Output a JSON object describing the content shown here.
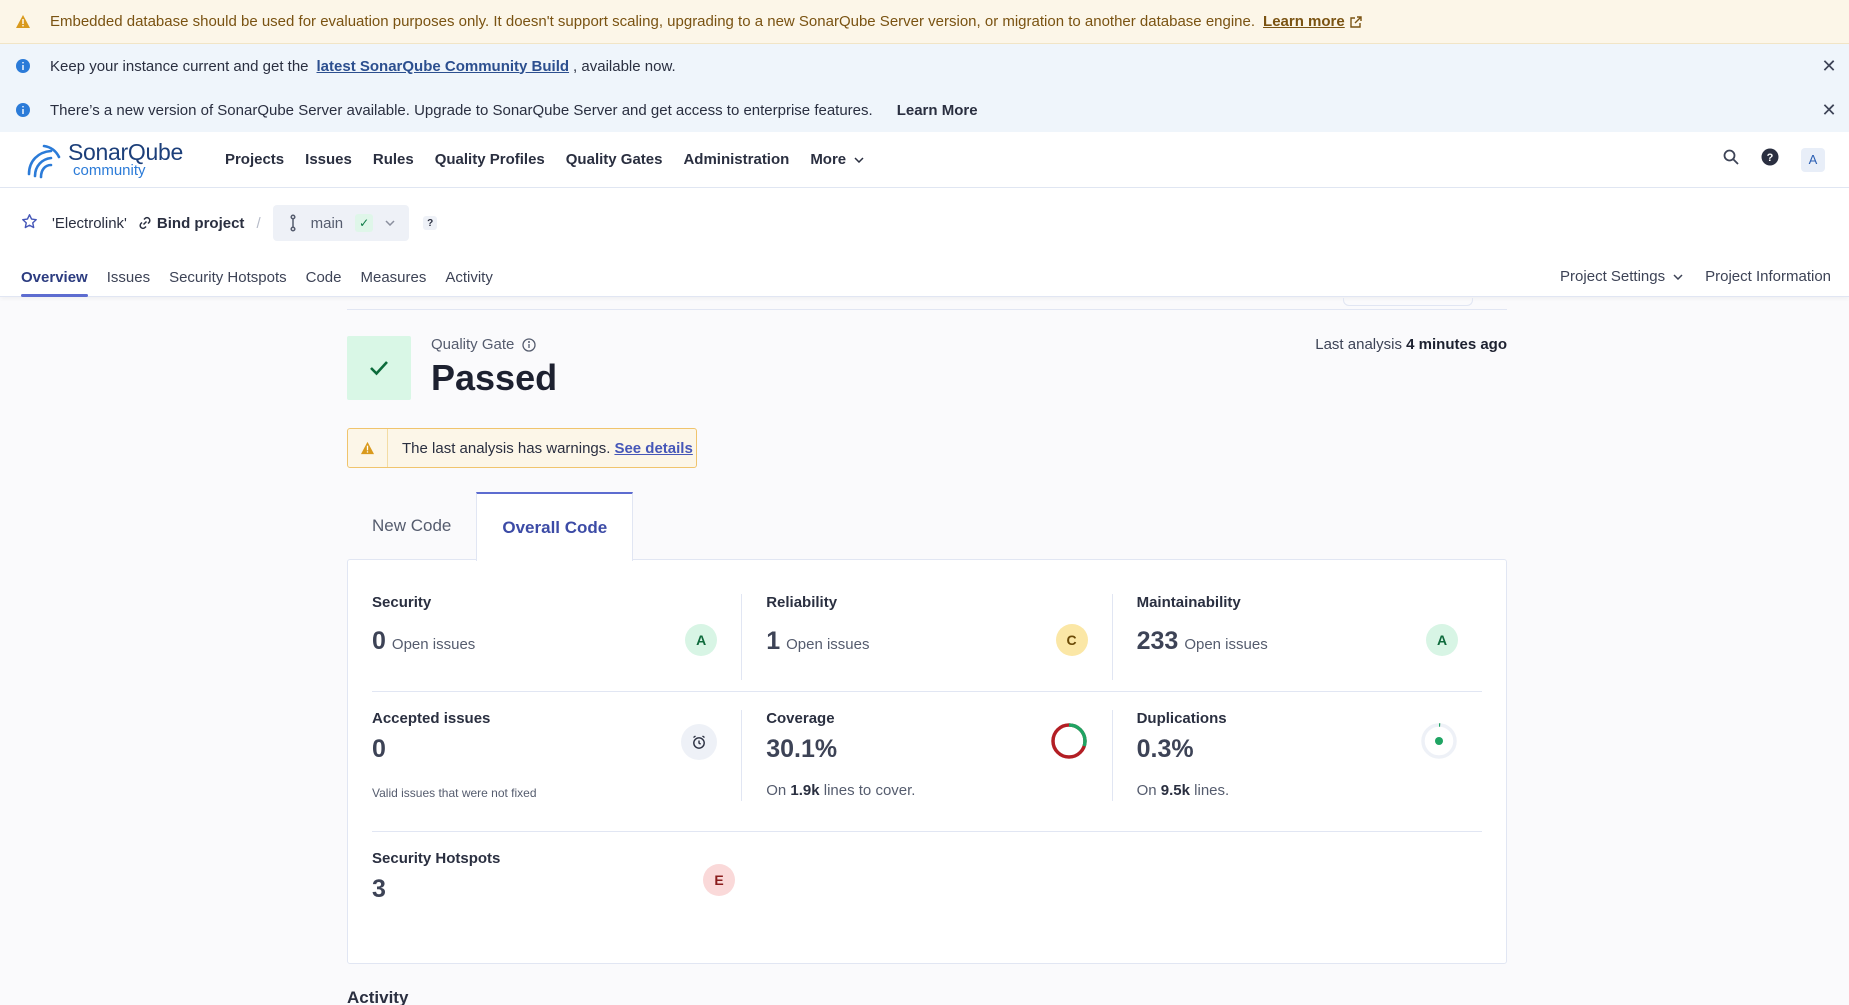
{
  "banners": {
    "db_warning": {
      "text": "Embedded database should be used for evaluation purposes only. It doesn't support scaling, upgrading to a new SonarQube Server version, or migration to another database engine.",
      "link": "Learn more"
    },
    "update": {
      "prefix": "Keep your instance current and get the",
      "link": "latest SonarQube Community Build",
      "suffix": ", available now."
    },
    "upgrade": {
      "text": "There’s a new version of SonarQube Server available. Upgrade to SonarQube Server and get access to enterprise features.",
      "link": "Learn More"
    }
  },
  "brand": {
    "name_part1": "Sonar",
    "name_part2": "Qube",
    "edition": "community"
  },
  "nav": {
    "items": [
      "Projects",
      "Issues",
      "Rules",
      "Quality Profiles",
      "Quality Gates",
      "Administration"
    ],
    "more": "More",
    "avatar": "A"
  },
  "project": {
    "name": "'Electrolink'",
    "bind": "Bind project",
    "separator": "/",
    "branch": "main",
    "help": "?"
  },
  "project_tabs": [
    "Overview",
    "Issues",
    "Security Hotspots",
    "Code",
    "Measures",
    "Activity"
  ],
  "project_tabs_right": {
    "settings": "Project Settings",
    "info": "Project Information"
  },
  "quality_gate": {
    "label": "Quality Gate",
    "status": "Passed",
    "last_analysis_label": "Last analysis",
    "last_analysis_value": "4 minutes ago"
  },
  "warning_box": {
    "text": "The last analysis has warnings.",
    "link": "See details"
  },
  "code_tabs": {
    "new": "New Code",
    "overall": "Overall Code"
  },
  "metrics": {
    "security": {
      "title": "Security",
      "value": "0",
      "unit": "Open issues",
      "rating": "A"
    },
    "reliability": {
      "title": "Reliability",
      "value": "1",
      "unit": "Open issues",
      "rating": "C"
    },
    "maintainability": {
      "title": "Maintainability",
      "value": "233",
      "unit": "Open issues",
      "rating": "A"
    },
    "accepted": {
      "title": "Accepted issues",
      "value": "0",
      "note": "Valid issues that were not fixed"
    },
    "coverage": {
      "title": "Coverage",
      "value": "30.1%",
      "fraction": 0.301,
      "prefix": "On",
      "count": "1.9k",
      "suffix": "lines to cover."
    },
    "duplications": {
      "title": "Duplications",
      "value": "0.3%",
      "fraction": 0.003,
      "prefix": "On",
      "count": "9.5k",
      "suffix": "lines."
    },
    "hotspots": {
      "title": "Security Hotspots",
      "value": "3",
      "rating": "E"
    }
  },
  "activity_heading": "Activity",
  "colors": {
    "accent": "#5d6cd0",
    "passed_bg": "#d9f7e6",
    "coverage_good": "#1fa463",
    "coverage_bad": "#b31e24"
  }
}
